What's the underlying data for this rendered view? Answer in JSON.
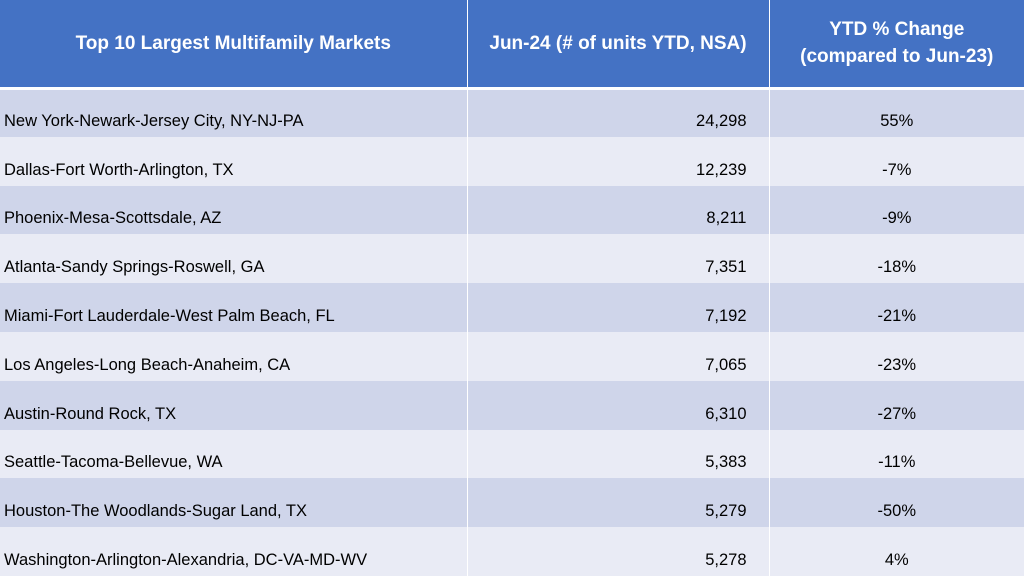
{
  "chart_data": {
    "type": "table",
    "columns": [
      "Top 10 Largest Multifamily Markets",
      "Jun-24 (# of units YTD, NSA)",
      "YTD % Change (compared to Jun-23)"
    ],
    "header": {
      "col1": "Top 10 Largest Multifamily Markets",
      "col2": "Jun-24 (# of units YTD, NSA)",
      "col3_line1": "YTD % Change",
      "col3_line2": "(compared to Jun-23)"
    },
    "rows": [
      {
        "market": "New York-Newark-Jersey City, NY-NJ-PA",
        "units": "24,298",
        "units_value": 24298,
        "change": "55%",
        "change_value": 55
      },
      {
        "market": "Dallas-Fort Worth-Arlington, TX",
        "units": "12,239",
        "units_value": 12239,
        "change": "-7%",
        "change_value": -7
      },
      {
        "market": "Phoenix-Mesa-Scottsdale, AZ",
        "units": "8,211",
        "units_value": 8211,
        "change": "-9%",
        "change_value": -9
      },
      {
        "market": "Atlanta-Sandy Springs-Roswell, GA",
        "units": "7,351",
        "units_value": 7351,
        "change": "-18%",
        "change_value": -18
      },
      {
        "market": "Miami-Fort Lauderdale-West Palm Beach, FL",
        "units": "7,192",
        "units_value": 7192,
        "change": "-21%",
        "change_value": -21
      },
      {
        "market": "Los Angeles-Long Beach-Anaheim, CA",
        "units": "7,065",
        "units_value": 7065,
        "change": "-23%",
        "change_value": -23
      },
      {
        "market": "Austin-Round Rock, TX",
        "units": "6,310",
        "units_value": 6310,
        "change": "-27%",
        "change_value": -27
      },
      {
        "market": "Seattle-Tacoma-Bellevue, WA",
        "units": "5,383",
        "units_value": 5383,
        "change": "-11%",
        "change_value": -11
      },
      {
        "market": "Houston-The Woodlands-Sugar Land, TX",
        "units": "5,279",
        "units_value": 5279,
        "change": "-50%",
        "change_value": -50
      },
      {
        "market": "Washington-Arlington-Alexandria, DC-VA-MD-WV",
        "units": "5,278",
        "units_value": 5278,
        "change": "4%",
        "change_value": 4
      }
    ]
  },
  "colors": {
    "header_bg": "#4472c4",
    "header_text": "#ffffff",
    "row_band_dark": "#cfd5ea",
    "row_band_light": "#e9ebf5"
  }
}
